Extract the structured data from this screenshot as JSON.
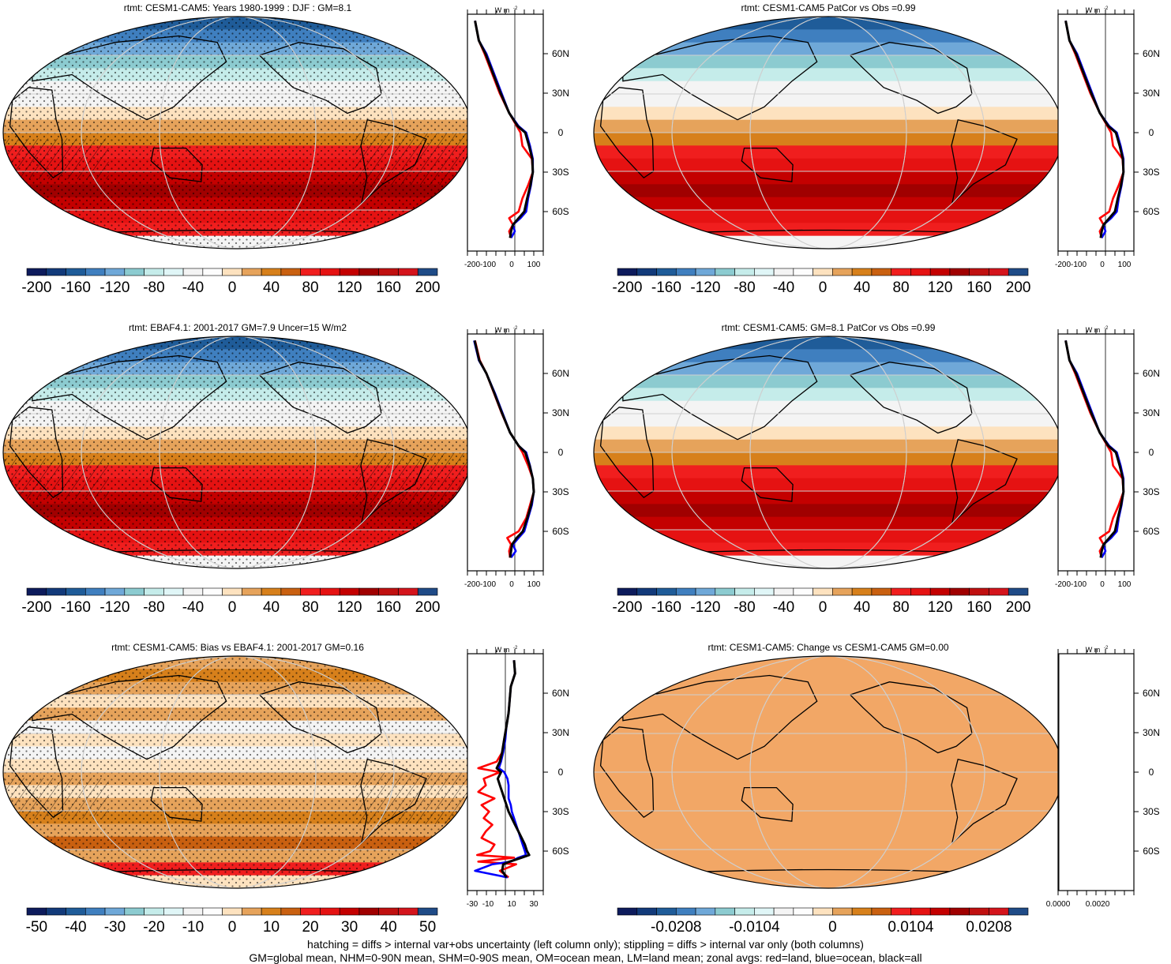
{
  "colors": {
    "palette_20": [
      "#0d1b5c",
      "#123a7a",
      "#1f5c99",
      "#3f7fbf",
      "#6fa8d8",
      "#8ccbd0",
      "#c5ecea",
      "#e0f6f7",
      "#f4f4f4",
      "#fdfdfd",
      "#fde2bf",
      "#e6a35b",
      "#d7801b",
      "#c96010",
      "#f01e1e",
      "#e51212",
      "#c40000",
      "#a00000",
      "#c01010",
      "#d4141c",
      "#1f4b87"
    ],
    "land_line": "#000000",
    "grid_line": "#cfcfcf",
    "zonal_land": "#ff0000",
    "zonal_ocean": "#0000ff",
    "zonal_all": "#000000",
    "flat_field": "#f2a766"
  },
  "panels": [
    {
      "id": "model",
      "title": "rtmt: CESM1-CAM5: Years 1980-1999 : DJF : GM=8.1",
      "colorbar_labels": [
        "-200",
        "-160",
        "-120",
        "-80",
        "-40",
        "0",
        "40",
        "80",
        "120",
        "160",
        "200"
      ],
      "zonal_xticks": [
        "-200",
        "-100",
        "0",
        "100"
      ],
      "zonal_yticks": [
        "60N",
        "30N",
        "0",
        "30S",
        "60S"
      ],
      "zonal_unit": "W m",
      "zonal_unit_sup": "-2",
      "stipple": true,
      "hatch": true
    },
    {
      "id": "model-patcor",
      "title": "rtmt: CESM1-CAM5 PatCor vs Obs =0.99",
      "colorbar_labels": [
        "-200",
        "-160",
        "-120",
        "-80",
        "-40",
        "0",
        "40",
        "80",
        "120",
        "160",
        "200"
      ],
      "zonal_xticks": [
        "-200",
        "-100",
        "0",
        "100"
      ],
      "zonal_yticks": [
        "60N",
        "30N",
        "0",
        "30S",
        "60S"
      ],
      "zonal_unit": "W m",
      "zonal_unit_sup": "-2",
      "stipple": false,
      "hatch": false
    },
    {
      "id": "obs",
      "title": "rtmt: EBAF4.1: 2001-2017 GM=7.9 Uncer=15 W/m2",
      "colorbar_labels": [
        "-200",
        "-160",
        "-120",
        "-80",
        "-40",
        "0",
        "40",
        "80",
        "120",
        "160",
        "200"
      ],
      "zonal_xticks": [
        "-200",
        "-100",
        "0",
        "100"
      ],
      "zonal_yticks": [
        "60N",
        "30N",
        "0",
        "30S",
        "60S"
      ],
      "zonal_unit": "W m",
      "zonal_unit_sup": "-2",
      "stipple": true,
      "hatch": true
    },
    {
      "id": "model-gm",
      "title": "rtmt: CESM1-CAM5: GM=8.1 PatCor vs Obs =0.99",
      "colorbar_labels": [
        "-200",
        "-160",
        "-120",
        "-80",
        "-40",
        "0",
        "40",
        "80",
        "120",
        "160",
        "200"
      ],
      "zonal_xticks": [
        "-200",
        "-100",
        "0",
        "100"
      ],
      "zonal_yticks": [
        "60N",
        "30N",
        "0",
        "30S",
        "60S"
      ],
      "zonal_unit": "W m",
      "zonal_unit_sup": "-2",
      "stipple": false,
      "hatch": false
    },
    {
      "id": "bias",
      "title": "rtmt: CESM1-CAM5: Bias vs EBAF4.1: 2001-2017 GM=0.16",
      "colorbar_labels": [
        "-50",
        "-40",
        "-30",
        "-20",
        "-10",
        "0",
        "10",
        "20",
        "30",
        "40",
        "50"
      ],
      "zonal_xticks": [
        "-30",
        "-10",
        "10",
        "30"
      ],
      "zonal_yticks": [
        "60N",
        "30N",
        "0",
        "30S",
        "60S"
      ],
      "zonal_unit": "W m",
      "zonal_unit_sup": "-2",
      "stipple": true,
      "hatch": true
    },
    {
      "id": "change",
      "title": "rtmt: CESM1-CAM5: Change vs CESM1-CAM5 GM=0.00",
      "colorbar_labels": [
        "-0.0208",
        "-0.0104",
        "0",
        "0.0104",
        "0.0208"
      ],
      "zonal_xticks": [
        "0.0000",
        "0.0020"
      ],
      "zonal_yticks": [
        "60N",
        "30N",
        "0",
        "30S",
        "60S"
      ],
      "zonal_unit": "W m",
      "zonal_unit_sup": "-2",
      "stipple": false,
      "hatch": false
    }
  ],
  "footer": {
    "line1": "hatching = diffs > internal var+obs uncertainty (left column only); stippling = diffs > internal var only (both columns)",
    "line2": "GM=global mean, NHM=0-90N mean, SHM=0-90S mean, OM=ocean mean, LM=land mean; zonal avgs: red=land, blue=ocean, black=all"
  },
  "chart_data": [
    {
      "type": "line",
      "title": "rtmt: CESM1-CAM5: Years 1980-1999 : DJF : GM=8.1",
      "xlabel": "W m-2",
      "xlim": [
        -250,
        150
      ],
      "ylim": [
        -90,
        90
      ],
      "series": [
        {
          "name": "red",
          "y": [
            85,
            70,
            60,
            45,
            30,
            15,
            5,
            0,
            -10,
            -20,
            -30,
            -40,
            -50,
            -60,
            -65,
            -70,
            -75,
            -80
          ],
          "x": [
            -210,
            -190,
            -160,
            -120,
            -80,
            -30,
            10,
            30,
            40,
            90,
            95,
            70,
            40,
            20,
            -30,
            -10,
            -30,
            -20
          ]
        },
        {
          "name": "blue",
          "y": [
            85,
            70,
            60,
            45,
            30,
            15,
            5,
            0,
            -10,
            -20,
            -30,
            -40,
            -50,
            -60,
            -65,
            -70,
            -75,
            -80
          ],
          "x": [
            -210,
            -190,
            -150,
            -110,
            -70,
            -30,
            20,
            60,
            80,
            95,
            95,
            85,
            70,
            60,
            30,
            -10,
            0,
            -20
          ]
        },
        {
          "name": "black",
          "y": [
            85,
            70,
            60,
            45,
            30,
            15,
            5,
            0,
            -10,
            -20,
            -30,
            -40,
            -50,
            -60,
            -65,
            -70,
            -75,
            -80
          ],
          "x": [
            -210,
            -190,
            -155,
            -115,
            -75,
            -30,
            15,
            55,
            75,
            92,
            95,
            82,
            65,
            50,
            20,
            -10,
            -20,
            -25
          ]
        }
      ]
    },
    {
      "type": "line",
      "title": "rtmt: CESM1-CAM5 PatCor vs Obs =0.99",
      "xlabel": "W m-2",
      "xlim": [
        -250,
        150
      ],
      "ylim": [
        -90,
        90
      ],
      "series": [
        {
          "name": "red",
          "y": [
            85,
            70,
            60,
            45,
            30,
            15,
            5,
            0,
            -10,
            -20,
            -30,
            -40,
            -50,
            -60,
            -65,
            -70,
            -75,
            -80
          ],
          "x": [
            -210,
            -190,
            -160,
            -120,
            -80,
            -30,
            10,
            30,
            40,
            90,
            95,
            70,
            40,
            20,
            -30,
            -10,
            -30,
            -20
          ]
        },
        {
          "name": "blue",
          "y": [
            85,
            70,
            60,
            45,
            30,
            15,
            5,
            0,
            -10,
            -20,
            -30,
            -40,
            -50,
            -60,
            -65,
            -70,
            -75,
            -80
          ],
          "x": [
            -210,
            -190,
            -150,
            -110,
            -70,
            -30,
            20,
            60,
            80,
            95,
            95,
            85,
            70,
            60,
            30,
            -10,
            0,
            -20
          ]
        },
        {
          "name": "black",
          "y": [
            85,
            70,
            60,
            45,
            30,
            15,
            5,
            0,
            -10,
            -20,
            -30,
            -40,
            -50,
            -60,
            -65,
            -70,
            -75,
            -80
          ],
          "x": [
            -210,
            -190,
            -155,
            -115,
            -75,
            -30,
            15,
            55,
            75,
            92,
            95,
            82,
            65,
            50,
            20,
            -10,
            -20,
            -25
          ]
        }
      ]
    },
    {
      "type": "line",
      "title": "rtmt: EBAF4.1: 2001-2017 GM=7.9 Uncer=15 W/m2",
      "xlabel": "W m-2",
      "xlim": [
        -250,
        150
      ],
      "ylim": [
        -90,
        90
      ],
      "series": [
        {
          "name": "red",
          "y": [
            85,
            70,
            60,
            45,
            30,
            15,
            5,
            0,
            -10,
            -20,
            -30,
            -40,
            -50,
            -60,
            -65,
            -70,
            -75,
            -80
          ],
          "x": [
            -210,
            -185,
            -150,
            -110,
            -70,
            -25,
            20,
            40,
            70,
            95,
            100,
            80,
            60,
            20,
            -40,
            -20,
            -30,
            -25
          ]
        },
        {
          "name": "blue",
          "y": [
            85,
            70,
            60,
            45,
            30,
            15,
            5,
            0,
            -10,
            -20,
            -30,
            -40,
            -50,
            -60,
            -65,
            -70,
            -75,
            -80
          ],
          "x": [
            -215,
            -190,
            -150,
            -105,
            -65,
            -25,
            20,
            60,
            80,
            95,
            100,
            90,
            70,
            50,
            20,
            -10,
            5,
            -20
          ]
        },
        {
          "name": "black",
          "y": [
            85,
            70,
            60,
            45,
            30,
            15,
            5,
            0,
            -10,
            -20,
            -30,
            -40,
            -50,
            -60,
            -65,
            -70,
            -75,
            -80
          ],
          "x": [
            -212,
            -188,
            -150,
            -108,
            -68,
            -25,
            20,
            55,
            78,
            95,
            100,
            86,
            66,
            42,
            10,
            -15,
            -20,
            -25
          ]
        }
      ]
    },
    {
      "type": "line",
      "title": "rtmt: CESM1-CAM5: GM=8.1 PatCor vs Obs =0.99",
      "xlabel": "W m-2",
      "xlim": [
        -250,
        150
      ],
      "ylim": [
        -90,
        90
      ],
      "series": [
        {
          "name": "red",
          "y": [
            85,
            70,
            60,
            45,
            30,
            15,
            5,
            0,
            -10,
            -20,
            -30,
            -40,
            -50,
            -60,
            -65,
            -70,
            -75,
            -80
          ],
          "x": [
            -210,
            -190,
            -160,
            -120,
            -80,
            -30,
            10,
            30,
            40,
            90,
            95,
            70,
            40,
            20,
            -30,
            -10,
            -30,
            -20
          ]
        },
        {
          "name": "blue",
          "y": [
            85,
            70,
            60,
            45,
            30,
            15,
            5,
            0,
            -10,
            -20,
            -30,
            -40,
            -50,
            -60,
            -65,
            -70,
            -75,
            -80
          ],
          "x": [
            -210,
            -190,
            -150,
            -110,
            -70,
            -30,
            20,
            60,
            80,
            95,
            95,
            85,
            70,
            60,
            30,
            -10,
            0,
            -20
          ]
        },
        {
          "name": "black",
          "y": [
            85,
            70,
            60,
            45,
            30,
            15,
            5,
            0,
            -10,
            -20,
            -30,
            -40,
            -50,
            -60,
            -65,
            -70,
            -75,
            -80
          ],
          "x": [
            -210,
            -190,
            -155,
            -115,
            -75,
            -30,
            15,
            55,
            75,
            92,
            95,
            82,
            65,
            50,
            20,
            -10,
            -20,
            -25
          ]
        }
      ]
    },
    {
      "type": "line",
      "title": "rtmt: CESM1-CAM5: Bias vs EBAF4.1: 2001-2017 GM=0.16",
      "xlabel": "W m-2",
      "xlim": [
        -35,
        35
      ],
      "ylim": [
        -90,
        90
      ],
      "series": [
        {
          "name": "red",
          "y": [
            85,
            75,
            65,
            55,
            45,
            35,
            25,
            15,
            8,
            3,
            0,
            -5,
            -10,
            -15,
            -20,
            -25,
            -30,
            -35,
            -40,
            -45,
            -50,
            -55,
            -60,
            -63,
            -65,
            -68,
            -70,
            -75,
            -80
          ],
          "x": [
            8,
            9,
            5,
            4,
            3,
            1,
            -1,
            -3,
            -8,
            -25,
            -5,
            -20,
            -18,
            -25,
            -10,
            -22,
            -15,
            -20,
            -12,
            -18,
            -22,
            -10,
            -14,
            -26,
            8,
            -25,
            10,
            -5,
            3
          ]
        },
        {
          "name": "blue",
          "y": [
            85,
            75,
            65,
            55,
            45,
            35,
            25,
            15,
            8,
            3,
            0,
            -5,
            -10,
            -15,
            -20,
            -25,
            -30,
            -35,
            -40,
            -45,
            -50,
            -55,
            -60,
            -63,
            -65,
            -68,
            -70,
            -75,
            -80
          ],
          "x": [
            8,
            9,
            5,
            4,
            3,
            1,
            0,
            -2,
            -4,
            -6,
            -1,
            2,
            3,
            3,
            3,
            5,
            6,
            8,
            10,
            12,
            14,
            16,
            18,
            19,
            12,
            5,
            -12,
            -28,
            2
          ]
        },
        {
          "name": "black",
          "y": [
            85,
            75,
            65,
            55,
            45,
            35,
            25,
            15,
            8,
            3,
            0,
            -5,
            -10,
            -15,
            -20,
            -25,
            -30,
            -35,
            -40,
            -45,
            -50,
            -55,
            -60,
            -63,
            -65,
            -68,
            -70,
            -75,
            -80
          ],
          "x": [
            8,
            9,
            5,
            4,
            3,
            1,
            -1,
            -3,
            -5,
            -8,
            -4,
            -7,
            -5,
            -3,
            -1,
            1,
            3,
            6,
            9,
            12,
            15,
            18,
            20,
            22,
            15,
            4,
            -2,
            -3,
            1
          ]
        }
      ]
    },
    {
      "type": "line",
      "title": "rtmt: CESM1-CAM5: Change vs CESM1-CAM5 GM=0.00",
      "xlabel": "W m-2",
      "xlim": [
        0,
        0.0035
      ],
      "ylim": [
        -90,
        90
      ],
      "series": [
        {
          "name": "red",
          "y": [
            90,
            -90
          ],
          "x": [
            0,
            0
          ]
        },
        {
          "name": "blue",
          "y": [
            90,
            -90
          ],
          "x": [
            0,
            0
          ]
        },
        {
          "name": "black",
          "y": [
            90,
            -90
          ],
          "x": [
            0,
            0
          ]
        }
      ]
    }
  ]
}
